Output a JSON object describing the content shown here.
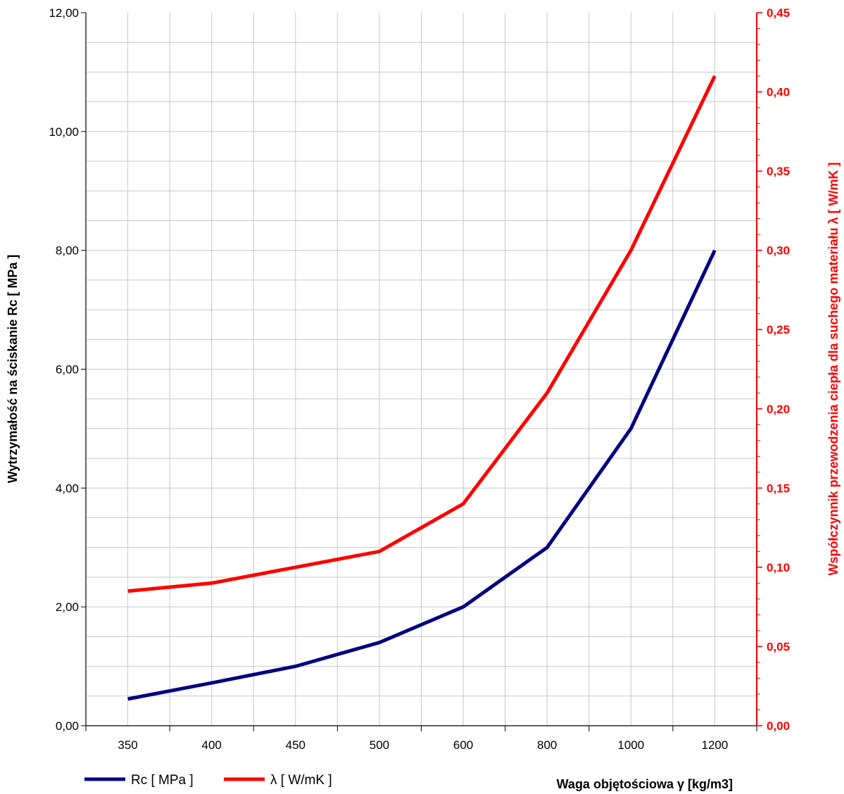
{
  "chart_data": {
    "type": "line",
    "categories": [
      "350",
      "400",
      "450",
      "500",
      "600",
      "800",
      "1000",
      "1200"
    ],
    "series": [
      {
        "name": "Rc [ MPa ]",
        "axis": "left",
        "color": "#000080",
        "values": [
          0.45,
          0.72,
          1.0,
          1.4,
          2.0,
          3.0,
          5.0,
          8.0
        ]
      },
      {
        "name": "λ [ W/mK ]",
        "axis": "right",
        "color": "#ff0000",
        "values": [
          0.085,
          0.09,
          0.1,
          0.11,
          0.14,
          0.21,
          0.3,
          0.41
        ]
      }
    ],
    "xlabel": "Waga objętościowa γ [kg/m3]",
    "ylabel": "Wytrzymałość na ściskanie Rc [ MPa ]",
    "y2label": "Współczynnik przewodzenia ciepła dla suchego materiału  λ [ W/mK ]",
    "ylim": [
      0,
      12
    ],
    "y2lim": [
      0,
      0.45
    ],
    "yticks": [
      "0,00",
      "2,00",
      "4,00",
      "6,00",
      "8,00",
      "10,00",
      "12,00"
    ],
    "y2ticks": [
      "0,00",
      "0,05",
      "0,10",
      "0,15",
      "0,20",
      "0,25",
      "0,30",
      "0,35",
      "0,40",
      "0,45"
    ],
    "grid": true,
    "legend": "bottom-left",
    "right_axis_color": "#ff0000"
  }
}
